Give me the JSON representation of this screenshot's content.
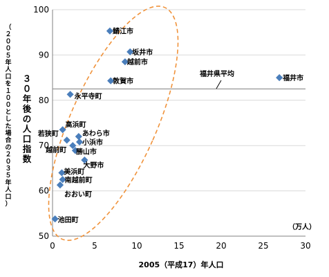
{
  "chart_data": {
    "type": "scatter",
    "xlabel": "2005（平成17）年人口",
    "xunit": "（万人）",
    "ylabel_main": "３０年後の人口指数",
    "ylabel_note": "（２００５年人口を１００とした場合の２０３５年人口）",
    "xlim": [
      0,
      30
    ],
    "ylim": [
      50,
      100
    ],
    "x_ticks": [
      0,
      5,
      10,
      15,
      20,
      25,
      30
    ],
    "y_ticks": [
      50,
      60,
      70,
      80,
      90,
      100
    ],
    "marker_color": "#4a7ebb",
    "reference_line": {
      "label": "福井県平均",
      "y": 82.5,
      "color": "#8c8c8c"
    },
    "ellipse_color": "#f0923a",
    "points": [
      {
        "label": "鯖江市",
        "x": 6.8,
        "y": 95.3
      },
      {
        "label": "坂井市",
        "x": 9.2,
        "y": 90.7
      },
      {
        "label": "越前市",
        "x": 8.6,
        "y": 88.5
      },
      {
        "label": "敦賀市",
        "x": 6.9,
        "y": 84.3
      },
      {
        "label": "福井市",
        "x": 26.9,
        "y": 85.0
      },
      {
        "label": "永平寺町",
        "x": 2.1,
        "y": 81.3
      },
      {
        "label": "高浜町",
        "x": 1.2,
        "y": 73.5
      },
      {
        "label": "若狭町",
        "x": 1.7,
        "y": 71.2
      },
      {
        "label": "あわら市",
        "x": 3.1,
        "y": 72.0
      },
      {
        "label": "小浜市",
        "x": 3.2,
        "y": 70.8
      },
      {
        "label": "越前町",
        "x": 2.4,
        "y": 70.0
      },
      {
        "label": "勝山市",
        "x": 2.7,
        "y": 68.9
      },
      {
        "label": "大野市",
        "x": 3.8,
        "y": 66.8
      },
      {
        "label": "美浜町",
        "x": 1.1,
        "y": 64.0
      },
      {
        "label": "南越前町",
        "x": 1.2,
        "y": 62.5
      },
      {
        "label": "おおい町",
        "x": 0.9,
        "y": 61.3
      },
      {
        "label": "池田町",
        "x": 0.3,
        "y": 53.8
      }
    ]
  }
}
